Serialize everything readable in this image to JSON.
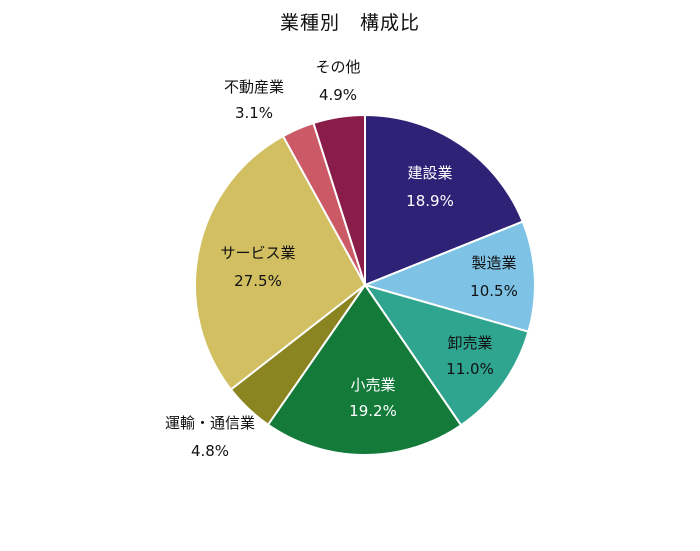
{
  "chart_data": {
    "type": "pie",
    "title": "業種別　構成比",
    "start_angle_deg": 0,
    "direction": "clockwise",
    "slices": [
      {
        "label": "建設業",
        "value": 18.9,
        "value_label": "18.9%",
        "color": "#2e2277",
        "label_placement": "inside",
        "text_color": "#ffffff"
      },
      {
        "label": "製造業",
        "value": 10.5,
        "value_label": "10.5%",
        "color": "#7ec3e6",
        "label_placement": "inside",
        "text_color": "#111111"
      },
      {
        "label": "卸売業",
        "value": 11.0,
        "value_label": "11.0%",
        "color": "#2fa48e",
        "label_placement": "inside",
        "text_color": "#111111"
      },
      {
        "label": "小売業",
        "value": 19.2,
        "value_label": "19.2%",
        "color": "#137a3a",
        "label_placement": "inside",
        "text_color": "#ffffff"
      },
      {
        "label": "運輸・通信業",
        "value": 4.8,
        "value_label": "4.8%",
        "color": "#8a8520",
        "label_placement": "outside",
        "text_color": "#111111"
      },
      {
        "label": "サービス業",
        "value": 27.5,
        "value_label": "27.5%",
        "color": "#d2bf62",
        "label_placement": "inside",
        "text_color": "#111111"
      },
      {
        "label": "不動産業",
        "value": 3.1,
        "value_label": "3.1%",
        "color": "#cc5a66",
        "label_placement": "outside",
        "text_color": "#111111"
      },
      {
        "label": "その他",
        "value": 4.9,
        "value_label": "4.9%",
        "color": "#8a1c49",
        "label_placement": "outside",
        "text_color": "#111111"
      }
    ]
  }
}
